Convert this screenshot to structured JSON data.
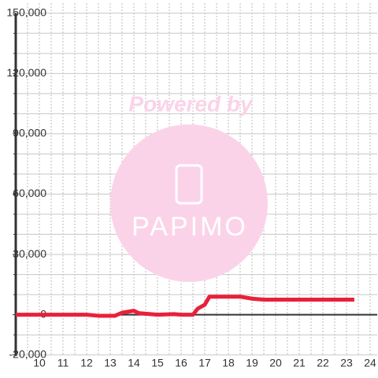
{
  "chart_data": {
    "type": "line",
    "watermark": {
      "title": "Powered by",
      "logo": "PAPIMO"
    },
    "x": [
      9,
      12,
      12.5,
      13.2,
      13.5,
      14,
      14.2,
      15,
      15.7,
      16,
      16.5,
      16.7,
      17,
      17.2,
      18,
      18.5,
      19,
      19.5,
      20,
      23.33
    ],
    "series": [
      {
        "color": "#e8213a",
        "values": [
          0,
          0,
          -500,
          -500,
          1000,
          2000,
          800,
          0,
          300,
          0,
          0,
          3000,
          5000,
          9000,
          9000,
          9000,
          8000,
          7500,
          7500,
          7500
        ]
      }
    ],
    "xlim": [
      9,
      24.3
    ],
    "xticks": [
      10,
      11,
      12,
      13,
      14,
      15,
      16,
      17,
      18,
      19,
      20,
      21,
      22,
      23,
      24
    ],
    "ylim": [
      -20500,
      155000
    ],
    "yticks": [
      {
        "value": -20000,
        "label": "-20,000"
      },
      0,
      {
        "value": 30000,
        "label": "30,000"
      },
      {
        "value": 60000,
        "label": "60,000"
      },
      {
        "value": 90000,
        "label": "90,000"
      },
      {
        "value": 120000,
        "label": "120,000"
      },
      {
        "value": 150000,
        "label": "150,000"
      }
    ],
    "grid": true
  }
}
